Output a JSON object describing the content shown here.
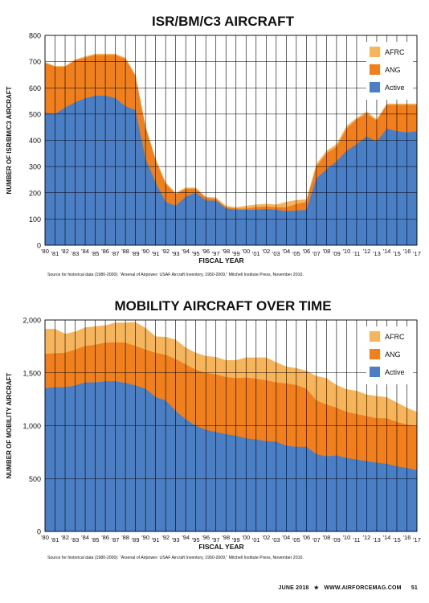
{
  "charts_meta": {
    "colors": {
      "active": "#4a7fc5",
      "ang": "#f07f1c",
      "afrc": "#f7b55b",
      "grid": "#000000"
    }
  },
  "chart_data": [
    {
      "type": "area",
      "stacked": true,
      "title": "ISR/BM/C3 AIRCRAFT",
      "xlabel": "FISCAL YEAR",
      "ylabel": "NUMBER OF ISR/BM/C3 AIRCRAFT",
      "ylim": [
        0,
        800
      ],
      "yticks": [
        "0",
        "100",
        "200",
        "300",
        "400",
        "500",
        "600",
        "700",
        "800"
      ],
      "ytick_values": [
        0,
        100,
        200,
        300,
        400,
        500,
        600,
        700,
        800
      ],
      "x_labels": [
        "'80",
        "'81",
        "'82",
        "'83",
        "'84",
        "'85",
        "'86",
        "'87",
        "'88",
        "'89",
        "'90",
        "'91",
        "'92",
        "'93",
        "'94",
        "'95",
        "'96",
        "'97",
        "'98",
        "'99",
        "'00",
        "'01",
        "'02",
        "'03",
        "'04",
        "'05",
        "'06",
        "'07",
        "'08",
        "'09",
        "'10",
        "'11",
        "'12",
        "'13",
        "'14",
        "'15",
        "'16",
        "'17"
      ],
      "legend_position": "top-right",
      "grid": true,
      "series": [
        {
          "name": "Active",
          "values": [
            505,
            500,
            525,
            545,
            560,
            570,
            570,
            560,
            530,
            515,
            330,
            240,
            165,
            150,
            185,
            200,
            170,
            170,
            140,
            135,
            135,
            135,
            138,
            135,
            130,
            132,
            135,
            255,
            290,
            320,
            360,
            385,
            415,
            395,
            445,
            435,
            430,
            435
          ]
        },
        {
          "name": "ANG",
          "values": [
            190,
            180,
            155,
            160,
            155,
            155,
            155,
            165,
            180,
            130,
            120,
            85,
            70,
            45,
            30,
            15,
            10,
            7,
            5,
            5,
            5,
            10,
            10,
            10,
            15,
            25,
            30,
            45,
            60,
            55,
            85,
            95,
            85,
            80,
            90,
            100,
            105,
            100
          ]
        },
        {
          "name": "AFRC",
          "values": [
            3,
            3,
            3,
            3,
            5,
            5,
            5,
            5,
            5,
            5,
            5,
            5,
            5,
            5,
            5,
            5,
            5,
            5,
            5,
            5,
            10,
            10,
            10,
            10,
            20,
            15,
            10,
            10,
            10,
            10,
            10,
            5,
            10,
            5,
            5,
            5,
            5,
            5
          ]
        }
      ],
      "source": "Source for historical data (1980-2000): “Arsenal of Airpower: USAF Aircraft Inventory, 1950-2009,” Mitchell Institute Press, November 2010."
    },
    {
      "type": "area",
      "stacked": true,
      "title": "MOBILITY AIRCRAFT OVER TIME",
      "xlabel": "FISCAL YEAR",
      "ylabel": "NUMBER OF MOBILITY AIRCRAFT",
      "ylim": [
        0,
        2000
      ],
      "yticks": [
        "0",
        "500",
        "1,000",
        "1,500",
        "2,000"
      ],
      "ytick_values": [
        0,
        500,
        1000,
        1500,
        2000
      ],
      "x_labels": [
        "'80",
        "'81",
        "'82",
        "'83",
        "'84",
        "'85",
        "'86",
        "'87",
        "'88",
        "'89",
        "'90",
        "'91",
        "'92",
        "'93",
        "'94",
        "'95",
        "'96",
        "'97",
        "'98",
        "'99",
        "'00",
        "'01",
        "'02",
        "'03",
        "'04",
        "'05",
        "'06",
        "'07",
        "'08",
        "'09",
        "'10",
        "'11",
        "'12",
        "'13",
        "'14",
        "'15",
        "'16",
        "'17"
      ],
      "legend_position": "top-right",
      "grid": true,
      "series": [
        {
          "name": "Active",
          "values": [
            1355,
            1365,
            1365,
            1380,
            1410,
            1410,
            1420,
            1420,
            1405,
            1380,
            1350,
            1270,
            1240,
            1140,
            1060,
            1000,
            960,
            940,
            920,
            905,
            880,
            870,
            855,
            850,
            810,
            800,
            800,
            730,
            710,
            720,
            695,
            680,
            665,
            650,
            640,
            615,
            600,
            580
          ]
        },
        {
          "name": "ANG",
          "values": [
            325,
            320,
            325,
            340,
            345,
            355,
            365,
            370,
            380,
            375,
            370,
            420,
            430,
            490,
            520,
            530,
            540,
            545,
            540,
            545,
            575,
            575,
            575,
            560,
            590,
            585,
            550,
            510,
            490,
            450,
            435,
            430,
            425,
            420,
            430,
            420,
            410,
            415
          ]
        },
        {
          "name": "AFRC",
          "values": [
            235,
            230,
            180,
            170,
            175,
            175,
            165,
            185,
            190,
            225,
            205,
            155,
            170,
            185,
            160,
            160,
            160,
            165,
            160,
            170,
            190,
            200,
            215,
            190,
            160,
            160,
            170,
            230,
            250,
            215,
            215,
            220,
            205,
            210,
            200,
            185,
            160,
            135
          ]
        }
      ],
      "source": "Source for historical data (1980-2000): “Arsenal of Airpower: USAF Aircraft Inventory, 1950-2009,” Mitchell Institute Press, November 2010."
    }
  ],
  "footer": {
    "issue": "JUNE 2018",
    "star": "★",
    "site": "WWW.AIRFORCEMAG.COM",
    "page": "51"
  }
}
